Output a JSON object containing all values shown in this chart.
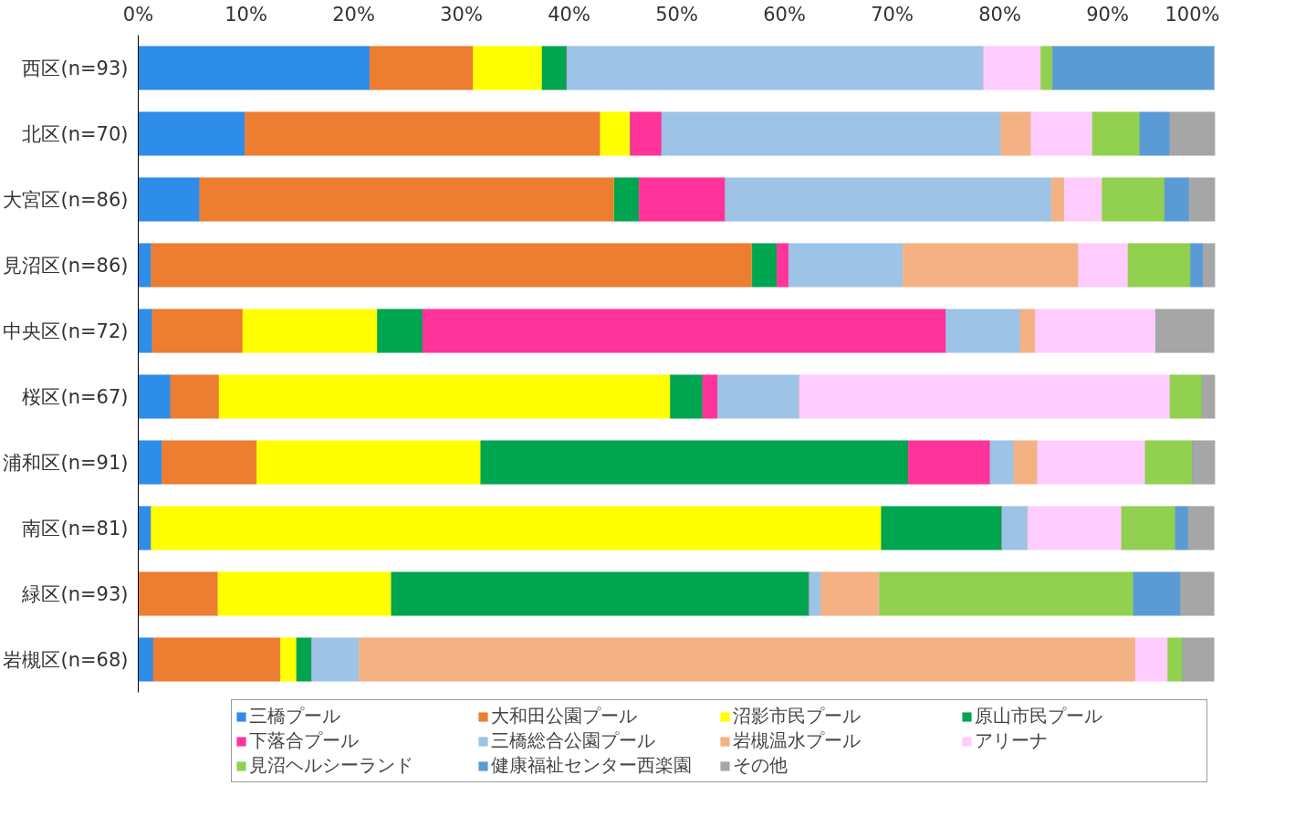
{
  "chart_data": {
    "type": "bar",
    "orientation": "horizontal",
    "stacked": true,
    "categories": [
      "西区(n=93)",
      "北区(n=70)",
      "大宮区(n=86)",
      "見沼区(n=86)",
      "中央区(n=72)",
      "桜区(n=67)",
      "浦和区(n=91)",
      "南区(n=81)",
      "緑区(n=93)",
      "岩槻区(n=68)"
    ],
    "xlim": [
      0,
      100
    ],
    "xticks": [
      {
        "value": 0,
        "label": "0%"
      },
      {
        "value": 10,
        "label": "10%"
      },
      {
        "value": 20,
        "label": "20%"
      },
      {
        "value": 30,
        "label": "30%"
      },
      {
        "value": 40,
        "label": "40%"
      },
      {
        "value": 50,
        "label": "50%"
      },
      {
        "value": 60,
        "label": "60%"
      },
      {
        "value": 70,
        "label": "70%"
      },
      {
        "value": 80,
        "label": "80%"
      },
      {
        "value": 90,
        "label": "90%"
      },
      {
        "value": 100,
        "label": "100%"
      }
    ],
    "grid": false,
    "legend": "bottom",
    "series": [
      {
        "name": "三橋プール",
        "color": "#2e8de8",
        "values": [
          21.5,
          9.9,
          5.7,
          1.2,
          1.3,
          3.0,
          2.2,
          1.2,
          0,
          1.4
        ]
      },
      {
        "name": "大和田公園プール",
        "color": "#ed7d31",
        "values": [
          9.6,
          33.0,
          38.5,
          55.8,
          8.4,
          4.5,
          8.8,
          0,
          7.4,
          11.8
        ]
      },
      {
        "name": "沼影市民プール",
        "color": "#ffff00",
        "values": [
          6.4,
          2.8,
          0,
          0,
          12.5,
          41.9,
          20.8,
          67.8,
          16.1,
          1.5
        ]
      },
      {
        "name": "原山市民プール",
        "color": "#00a550",
        "values": [
          2.3,
          0,
          2.3,
          2.3,
          4.2,
          3.0,
          39.7,
          11.2,
          38.8,
          1.4
        ]
      },
      {
        "name": "下落合プール",
        "color": "#ff3399",
        "values": [
          0,
          2.9,
          8.0,
          1.1,
          48.6,
          1.4,
          7.6,
          0,
          0,
          0
        ]
      },
      {
        "name": "三橋総合公園プール",
        "color": "#9dc3e6",
        "values": [
          38.7,
          31.5,
          30.3,
          10.6,
          6.9,
          7.6,
          2.2,
          2.4,
          1.1,
          4.4
        ]
      },
      {
        "name": "岩槻温水プール",
        "color": "#f4b183",
        "values": [
          0,
          2.8,
          1.2,
          16.3,
          1.4,
          0,
          2.2,
          0,
          5.4,
          72.1
        ]
      },
      {
        "name": "アリーナ",
        "color": "#ffccff",
        "values": [
          5.3,
          5.7,
          3.5,
          4.6,
          11.2,
          34.4,
          10.0,
          8.7,
          0,
          3.0
        ]
      },
      {
        "name": "見沼ヘルシーランド",
        "color": "#92d050",
        "values": [
          1.1,
          4.4,
          5.8,
          5.8,
          0,
          3.0,
          4.4,
          5.0,
          23.6,
          1.4
        ]
      },
      {
        "name": "健康福祉センター西楽園",
        "color": "#5b9bd5",
        "values": [
          15.0,
          2.8,
          2.3,
          1.2,
          0,
          0,
          0,
          1.2,
          4.4,
          0
        ]
      },
      {
        "name": "その他",
        "color": "#a6a6a6",
        "values": [
          0,
          4.2,
          2.4,
          1.1,
          5.4,
          1.4,
          2.2,
          2.4,
          3.1,
          2.9
        ]
      }
    ]
  }
}
